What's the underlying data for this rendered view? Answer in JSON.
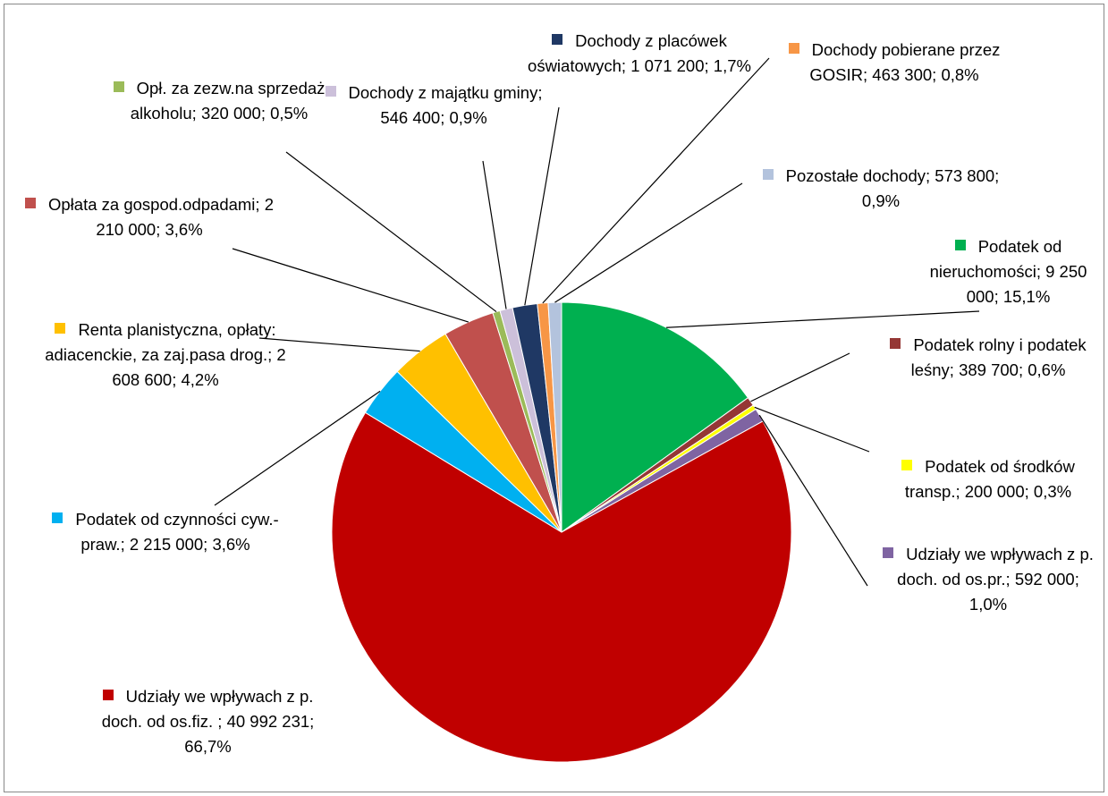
{
  "chart_data": {
    "type": "pie",
    "separator": "; ",
    "categories": [
      "Podatek od nieruchomości",
      "Podatek rolny i podatek leśny",
      "Podatek od środków transp.",
      "Udziały we wpływach z p. doch. od os.pr.",
      "Udziały we wpływach z p. doch. od os.fiz. ",
      "Podatek od czynności cyw.-praw.",
      "Renta planistyczna, opłaty: adiacenckie, za zaj.pasa drog.",
      "Opłata za gospod.odpadami",
      "Opł. za zezw.na sprzedaż alkoholu",
      "Dochody z majątku gminy",
      "Dochody z placówek oświatowych",
      "Dochody pobierane przez GOSIR",
      "Pozostałe dochody"
    ],
    "values": [
      9250000,
      389700,
      200000,
      592000,
      40992231,
      2215000,
      2608600,
      2210000,
      320000,
      546400,
      1071200,
      463300,
      573800
    ],
    "value_labels": [
      "9 250 000",
      "389 700",
      "200 000",
      "592 000",
      "40 992 231",
      "2 215 000",
      "2 608 600",
      "2 210 000",
      "320 000",
      "546 400",
      "1 071 200",
      "463 300",
      "573 800"
    ],
    "percent_labels": [
      "15,1%",
      "0,6%",
      "0,3%",
      "1,0%",
      "66,7%",
      "3,6%",
      "4,2%",
      "3,6%",
      "0,5%",
      "0,9%",
      "1,7%",
      "0,8%",
      "0,9%"
    ],
    "colors": [
      "#00b050",
      "#953735",
      "#ffff00",
      "#7f64a2",
      "#c00000",
      "#00b0f0",
      "#ffc000",
      "#c0504d",
      "#9bbb59",
      "#ccc0da",
      "#1f3864",
      "#f79646",
      "#b3c3dd"
    ]
  }
}
